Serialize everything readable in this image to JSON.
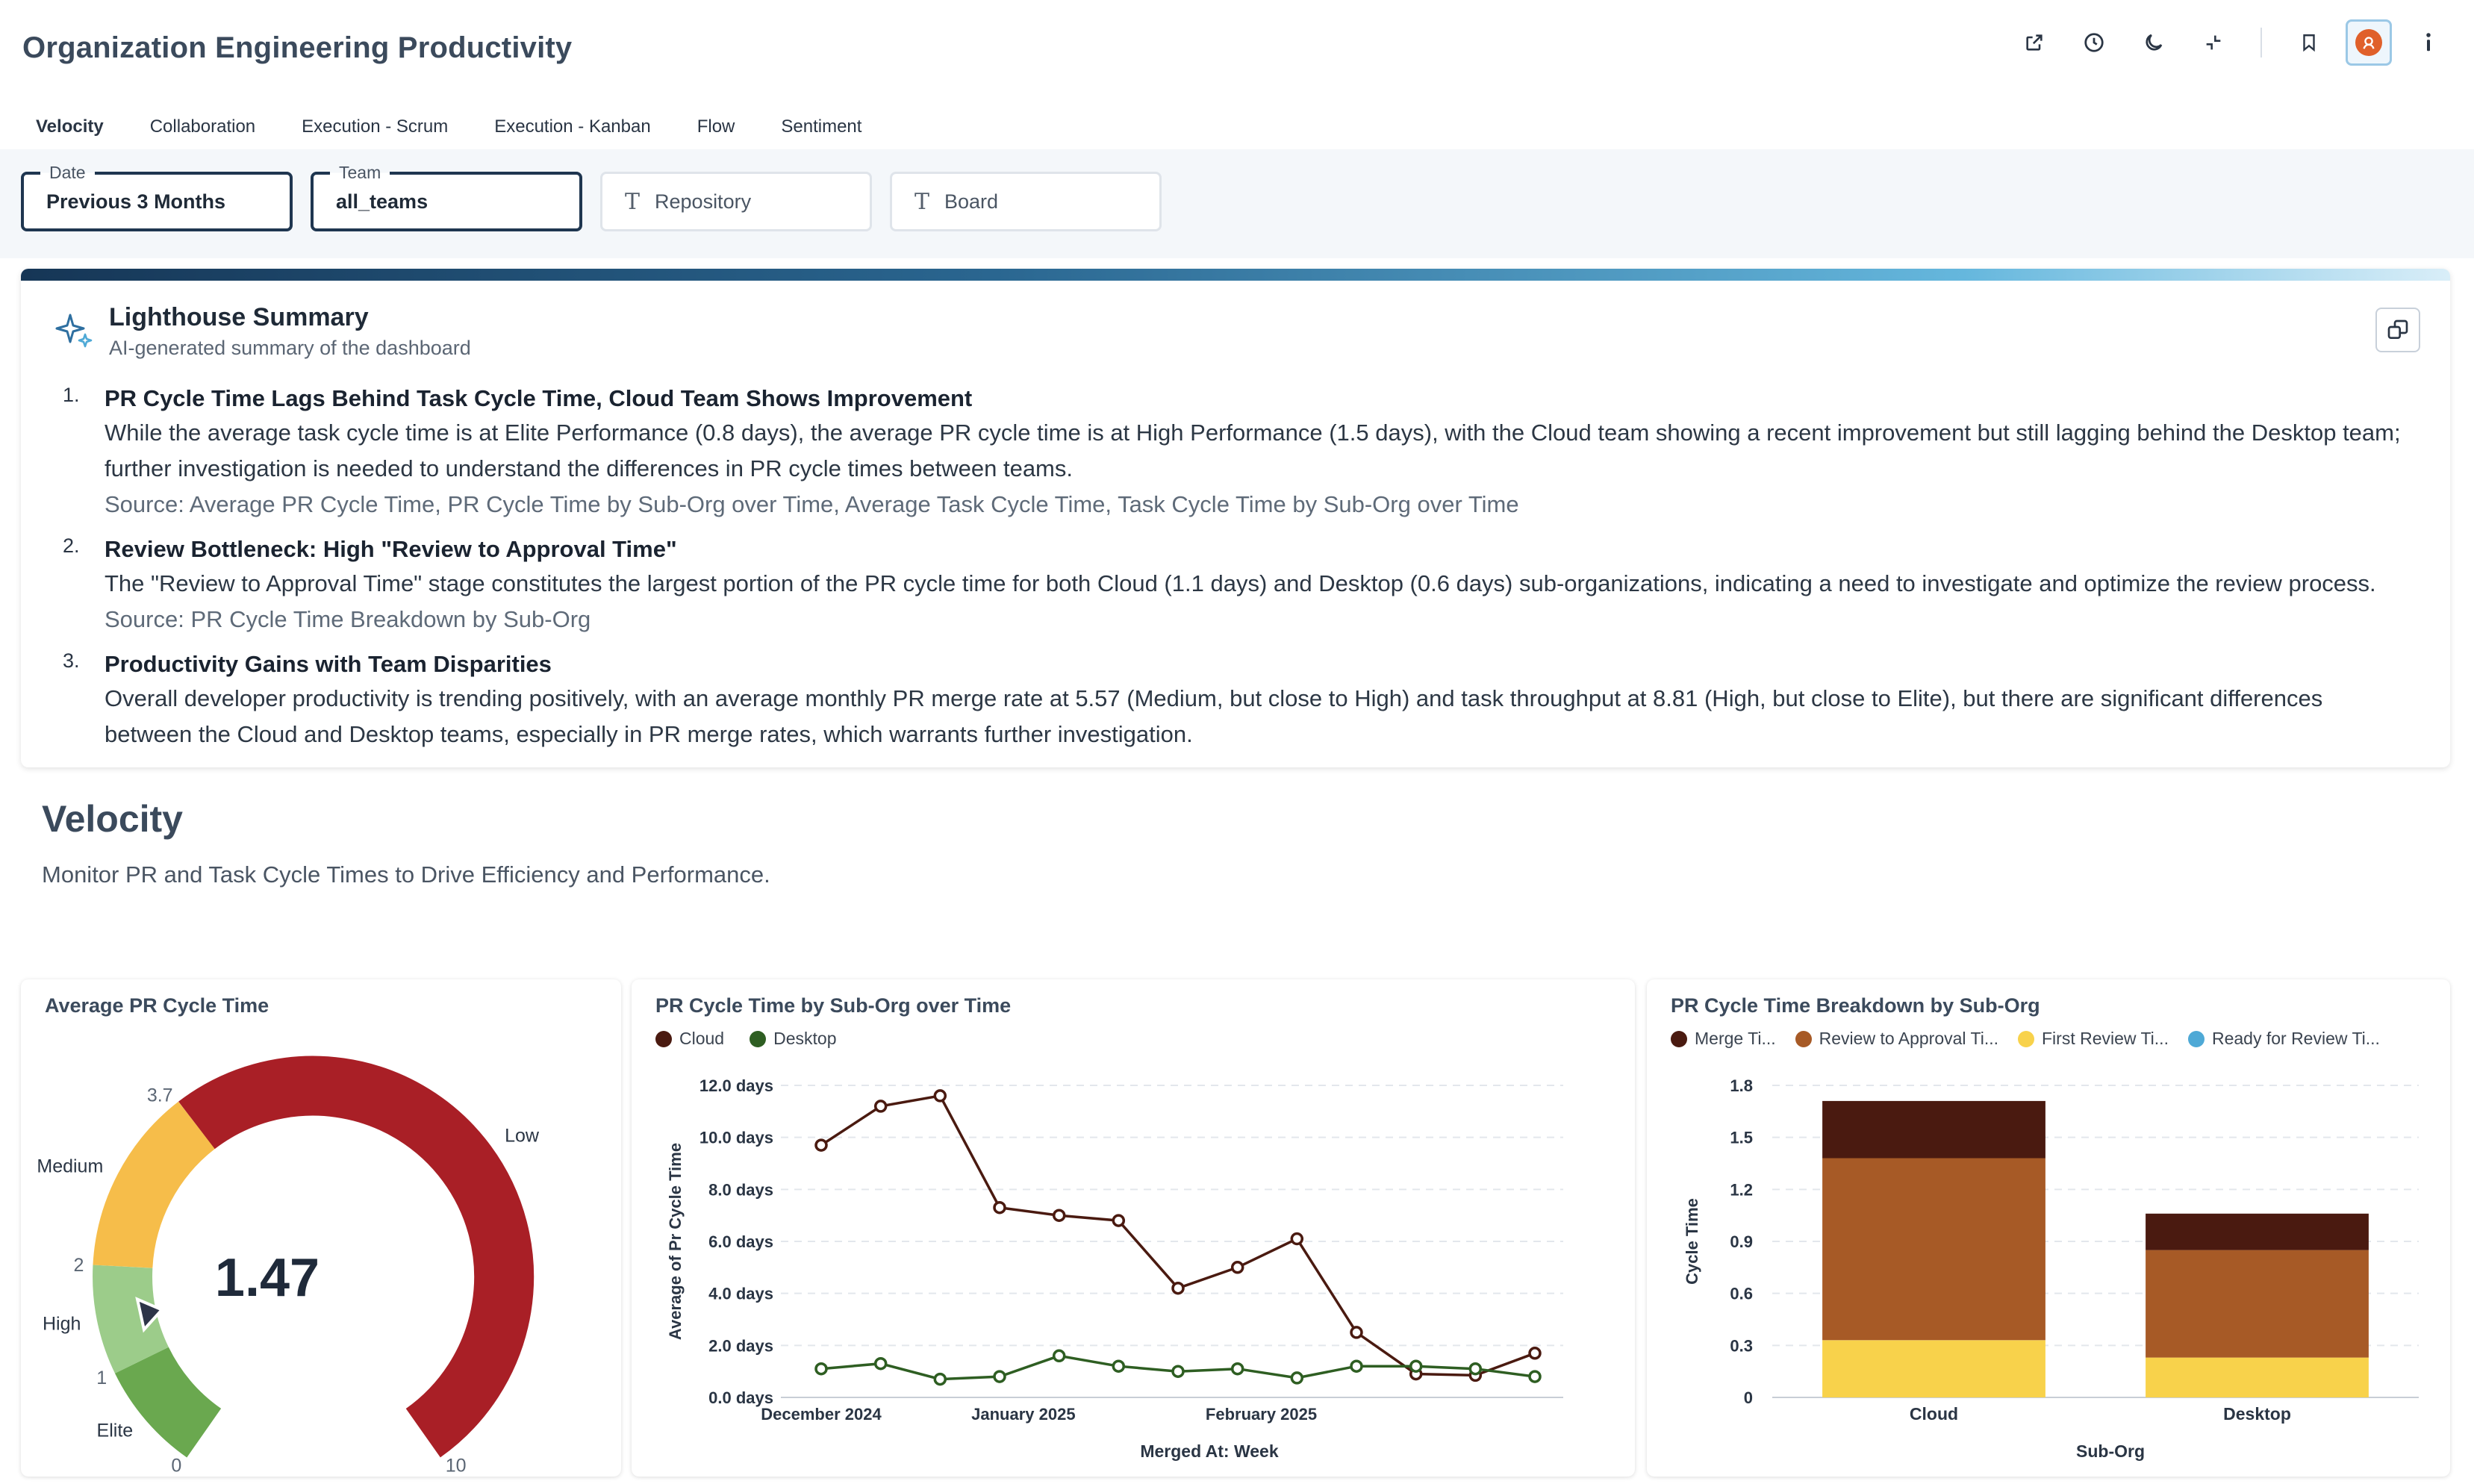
{
  "header": {
    "title": "Organization Engineering Productivity",
    "icons": [
      "external-link-icon",
      "clock-icon",
      "moon-icon",
      "collapse-icon",
      "bookmark-icon",
      "avatar",
      "info-icon"
    ]
  },
  "tabs": [
    {
      "label": "Velocity",
      "active": true
    },
    {
      "label": "Collaboration"
    },
    {
      "label": "Execution - Scrum"
    },
    {
      "label": "Execution - Kanban"
    },
    {
      "label": "Flow"
    },
    {
      "label": "Sentiment"
    }
  ],
  "filters": {
    "date": {
      "label": "Date",
      "value": "Previous 3 Months"
    },
    "team": {
      "label": "Team",
      "value": "all_teams"
    },
    "repository": {
      "placeholder": "Repository"
    },
    "board": {
      "placeholder": "Board"
    }
  },
  "summary": {
    "title": "Lighthouse Summary",
    "subtitle": "AI-generated summary of the dashboard",
    "items": [
      {
        "num": "1.",
        "title": "PR Cycle Time Lags Behind Task Cycle Time, Cloud Team Shows Improvement",
        "text": "While the average task cycle time is at Elite Performance (0.8 days), the average PR cycle time is at High Performance (1.5 days), with the Cloud team showing a recent improvement but still lagging behind the Desktop team; further investigation is needed to understand the differences in PR cycle times between teams.",
        "source": "Source: Average PR Cycle Time, PR Cycle Time by Sub-Org over Time, Average Task Cycle Time, Task Cycle Time by Sub-Org over Time"
      },
      {
        "num": "2.",
        "title": "Review Bottleneck: High \"Review to Approval Time\"",
        "text": "The \"Review to Approval Time\" stage constitutes the largest portion of the PR cycle time for both Cloud (1.1 days) and Desktop (0.6 days) sub-organizations, indicating a need to investigate and optimize the review process.",
        "source": "Source: PR Cycle Time Breakdown by Sub-Org"
      },
      {
        "num": "3.",
        "title": "Productivity Gains with Team Disparities",
        "text": "Overall developer productivity is trending positively, with an average monthly PR merge rate at 5.57 (Medium, but close to High) and task throughput at 8.81 (High, but close to Elite), but there are significant differences between the Cloud and Desktop teams, especially in PR merge rates, which warrants further investigation.",
        "source": ""
      }
    ]
  },
  "section": {
    "title": "Velocity",
    "description": "Monitor PR and Task Cycle Times to Drive Efficiency and Performance."
  },
  "gauge": {
    "title": "Average PR Cycle Time",
    "value": "1.47",
    "min": 0,
    "max": 10,
    "bands": [
      {
        "name": "Elite",
        "from": 0,
        "to": 1,
        "color": "#6aa84f"
      },
      {
        "name": "High",
        "from": 1,
        "to": 2,
        "color": "#9ccc8a"
      },
      {
        "name": "Medium",
        "from": 2,
        "to": 3.7,
        "color": "#f6bd4a"
      },
      {
        "name": "Low",
        "from": 3.7,
        "to": 10,
        "color": "#a91f26"
      }
    ],
    "tick_labels": [
      "0",
      "1",
      "2",
      "3.7",
      "10"
    ]
  },
  "charts": {
    "line_title": "PR Cycle Time by Sub-Org over Time",
    "bar_title": "PR Cycle Time Breakdown by Sub-Org"
  },
  "chart_data": [
    {
      "type": "line",
      "title": "PR Cycle Time by Sub-Org over Time",
      "xlabel": "Merged At: Week",
      "ylabel": "Average of Pr Cycle Time",
      "x_tick_labels": [
        "December 2024",
        "January 2025",
        "February 2025"
      ],
      "y_tick_labels": [
        "0.0 days",
        "2.0 days",
        "4.0 days",
        "6.0 days",
        "8.0 days",
        "10.0 days",
        "12.0 days"
      ],
      "ylim": [
        0,
        12
      ],
      "grid": true,
      "legend": "top-left",
      "series": [
        {
          "name": "Cloud",
          "color": "#4a1a10",
          "values": [
            9.7,
            11.2,
            11.6,
            7.3,
            7.0,
            6.8,
            4.2,
            5.0,
            6.1,
            2.5,
            0.9,
            0.85,
            1.7
          ]
        },
        {
          "name": "Desktop",
          "color": "#2e5e22",
          "values": [
            1.1,
            1.3,
            0.7,
            0.8,
            1.6,
            1.2,
            1.0,
            1.1,
            0.75,
            1.2,
            1.2,
            1.1,
            0.8
          ]
        }
      ]
    },
    {
      "type": "bar",
      "title": "PR Cycle Time Breakdown by Sub-Org",
      "xlabel": "Sub-Org",
      "ylabel": "Cycle Time",
      "categories": [
        "Cloud",
        "Desktop"
      ],
      "y_tick_labels": [
        "0",
        "0.3",
        "0.6",
        "0.9",
        "1.2",
        "1.5",
        "1.8"
      ],
      "ylim": [
        0,
        1.8
      ],
      "grid": true,
      "legend": "top-left",
      "stacked": true,
      "series": [
        {
          "name": "Ready for Review Ti...",
          "color": "#4ea9d6",
          "values": [
            0,
            0
          ]
        },
        {
          "name": "First Review Ti...",
          "color": "#f8d24b",
          "values": [
            0.33,
            0.23
          ]
        },
        {
          "name": "Review to Approval Ti...",
          "color": "#a75a26",
          "values": [
            1.05,
            0.62
          ]
        },
        {
          "name": "Merge Ti...",
          "color": "#4a1a10",
          "values": [
            0.33,
            0.21
          ]
        }
      ]
    }
  ]
}
